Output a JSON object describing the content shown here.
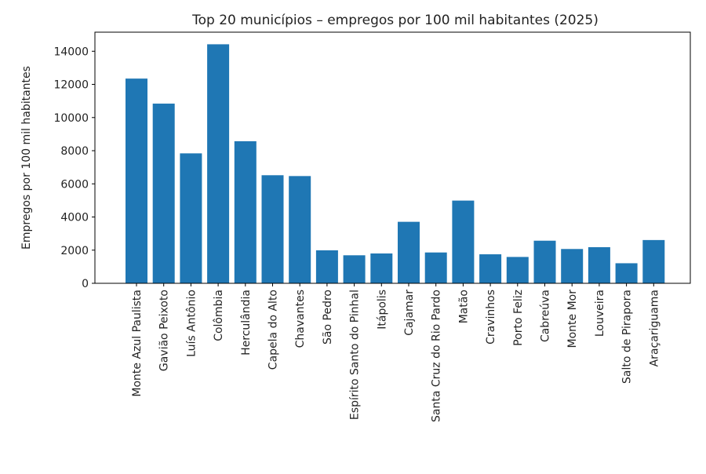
{
  "chart_data": {
    "type": "bar",
    "title": "Top 20 municípios – empregos por 100 mil habitantes (2025)",
    "xlabel": "",
    "ylabel": "Empregos por 100 mil habitantes",
    "categories": [
      "Monte Azul Paulista",
      "Gavião Peixoto",
      "Luís Antônio",
      "Colômbia",
      "Herculândia",
      "Capela do Alto",
      "Chavantes",
      "São Pedro",
      "Espírito Santo do Pinhal",
      "Itápolis",
      "Cajamar",
      "Santa Cruz do Rio Pardo",
      "Matão",
      "Cravinhos",
      "Porto Feliz",
      "Cabreúva",
      "Monte Mor",
      "Louveira",
      "Salto de Pirapora",
      "Araçariguama"
    ],
    "values": [
      12350,
      10840,
      7840,
      14420,
      8570,
      6520,
      6470,
      1990,
      1690,
      1800,
      3710,
      1860,
      4990,
      1750,
      1590,
      2570,
      2070,
      2180,
      1210,
      2610
    ],
    "ylim": [
      0,
      15150
    ],
    "yticks": [
      0,
      2000,
      4000,
      6000,
      8000,
      10000,
      12000,
      14000
    ],
    "grid": false,
    "bar_color": "#1f77b4"
  }
}
